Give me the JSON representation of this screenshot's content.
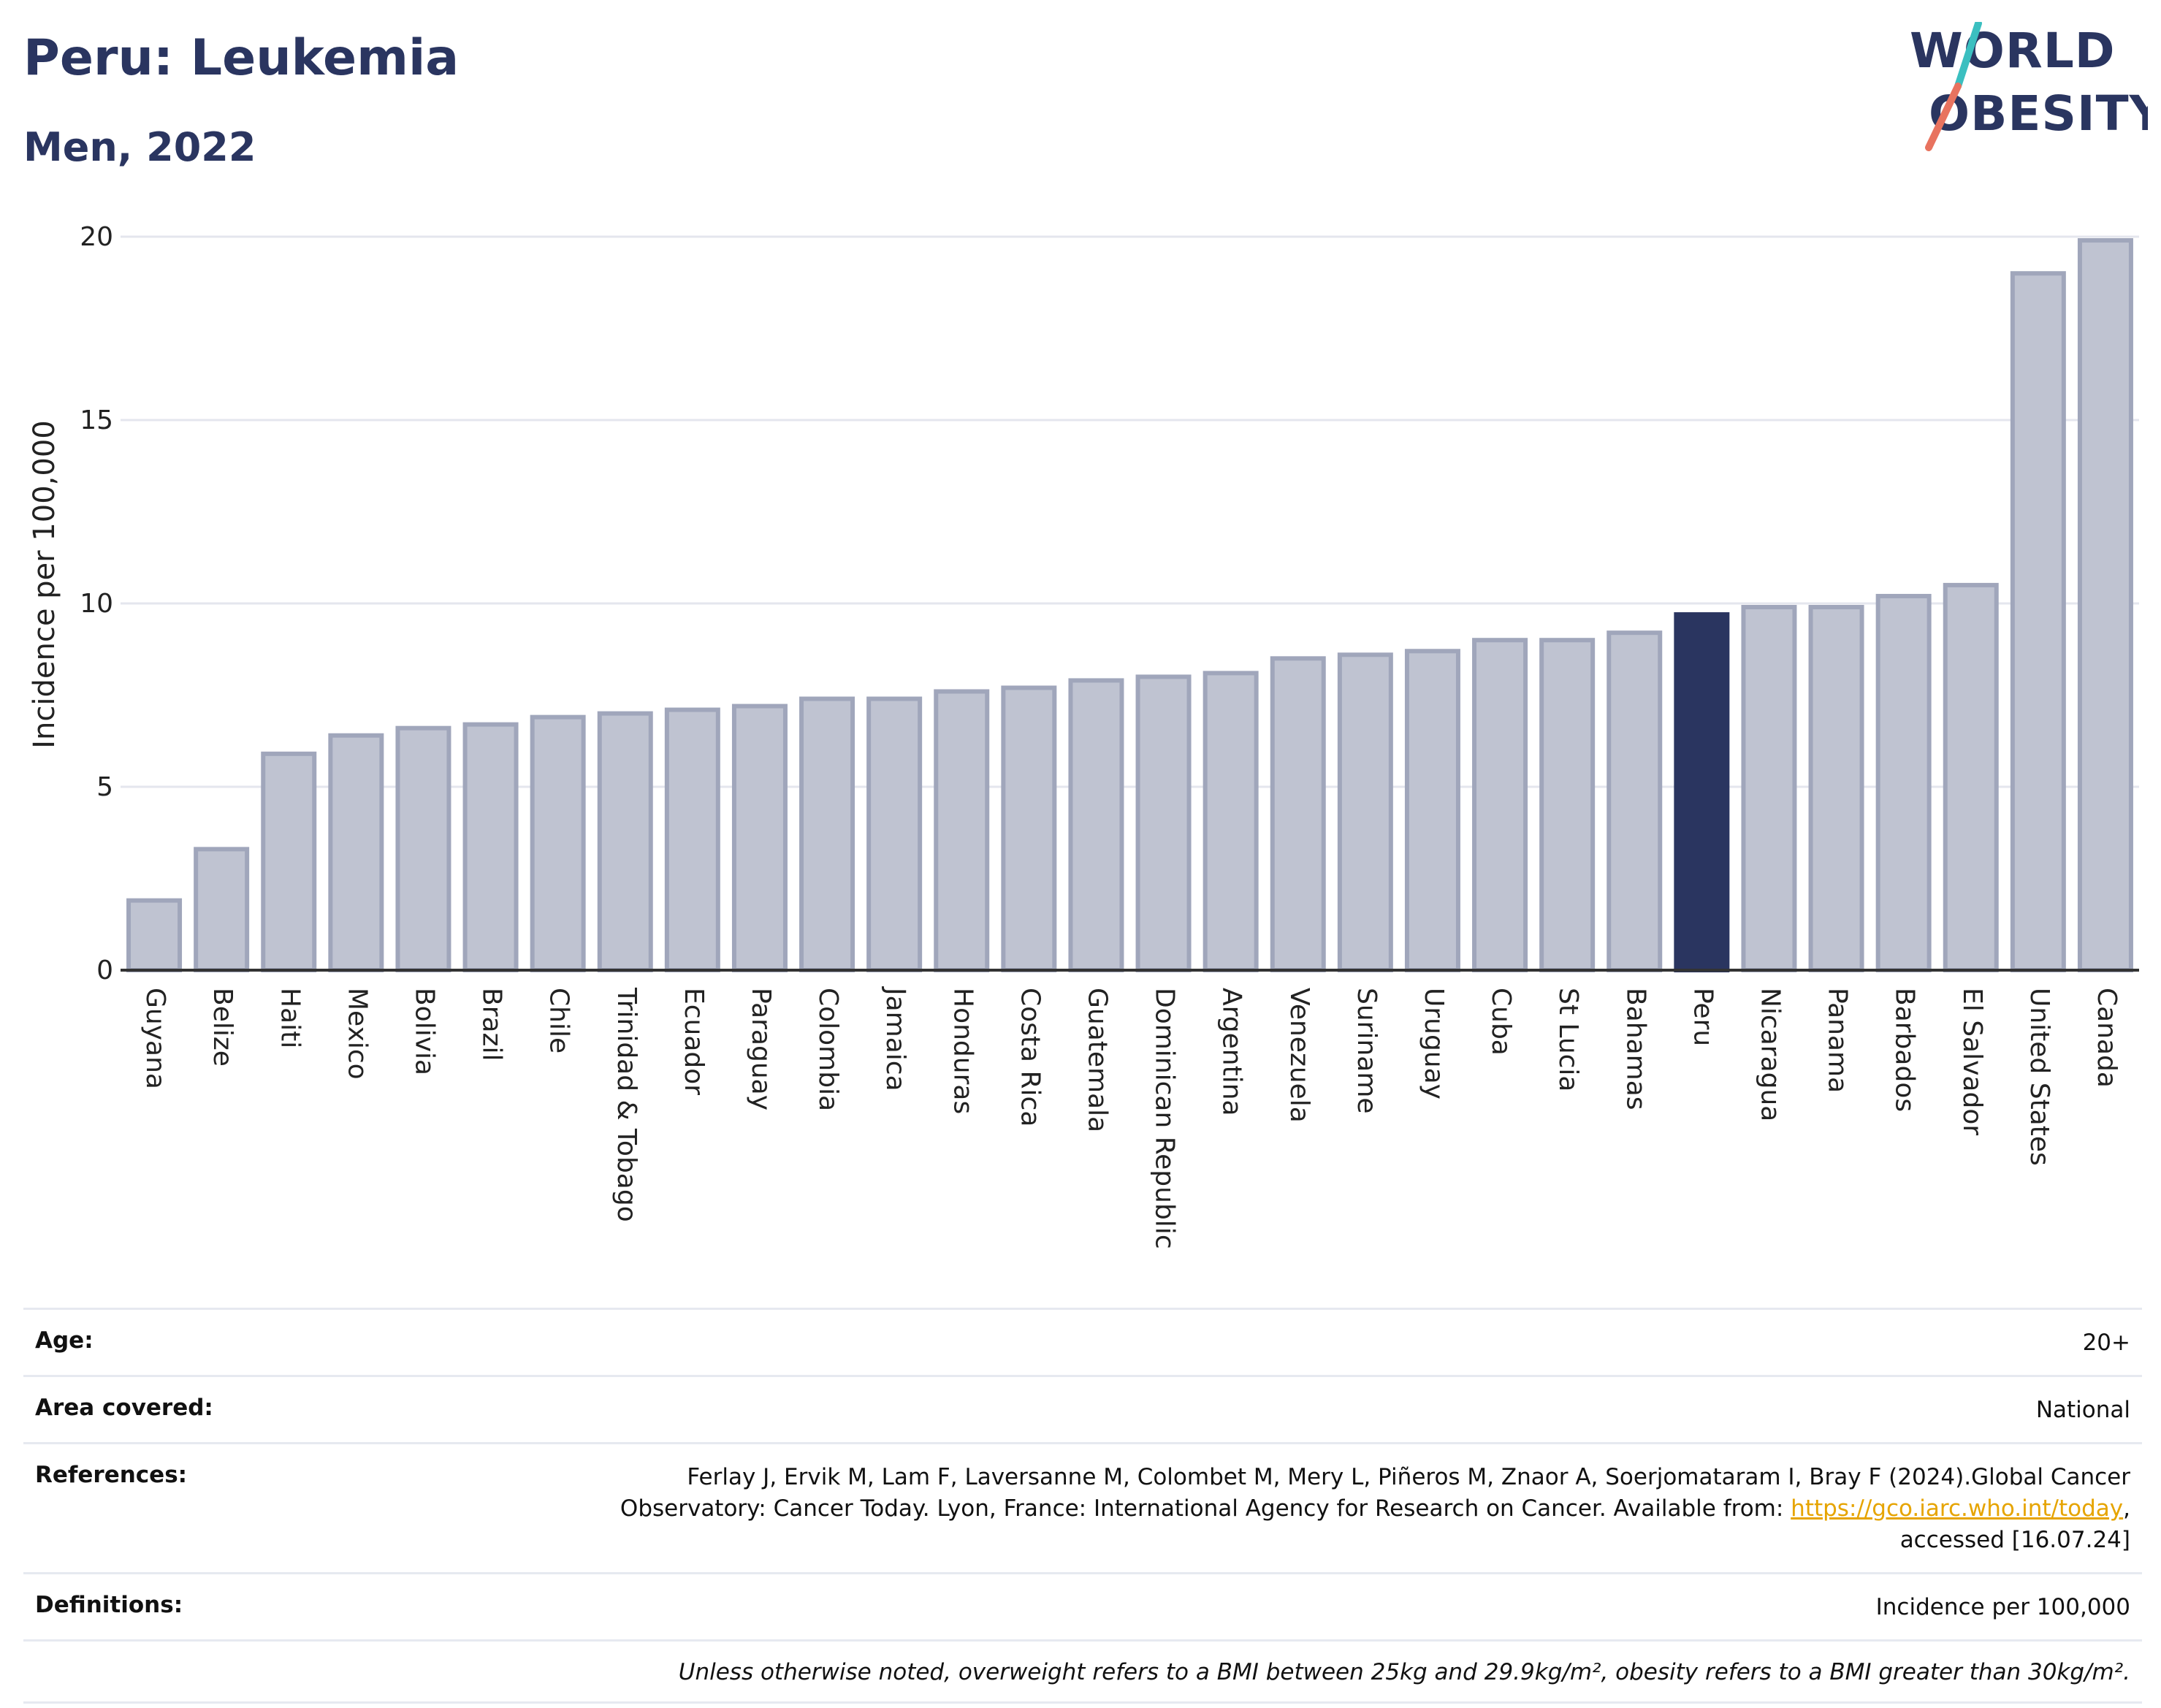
{
  "header": {
    "title": "Peru: Leukemia",
    "subtitle": "Men, 2022"
  },
  "logo": {
    "line1": "WORLD",
    "line2": "OBESITY",
    "colors": {
      "text": "#2a3560",
      "slash_top": "#3bbfc0",
      "slash_bottom": "#e8735f"
    }
  },
  "chart_data": {
    "type": "bar",
    "ylabel": "Incidence per 100,000",
    "ylim": [
      0,
      20
    ],
    "yticks": [
      0,
      5,
      10,
      15,
      20
    ],
    "highlight": "Peru",
    "colors": {
      "bar": "#bfc3d1",
      "bar_stroke": "#a0a6bb",
      "highlight": "#2a3560"
    },
    "grid": true,
    "categories": [
      "Guyana",
      "Belize",
      "Haiti",
      "Mexico",
      "Bolivia",
      "Brazil",
      "Chile",
      "Trinidad & Tobago",
      "Ecuador",
      "Paraguay",
      "Colombia",
      "Jamaica",
      "Honduras",
      "Costa Rica",
      "Guatemala",
      "Dominican Republic",
      "Argentina",
      "Venezuela",
      "Suriname",
      "Uruguay",
      "Cuba",
      "St Lucia",
      "Bahamas",
      "Peru",
      "Nicaragua",
      "Panama",
      "Barbados",
      "El Salvador",
      "United States",
      "Canada"
    ],
    "values": [
      1.9,
      3.3,
      5.9,
      6.4,
      6.6,
      6.7,
      6.9,
      7.0,
      7.1,
      7.2,
      7.4,
      7.4,
      7.6,
      7.7,
      7.9,
      8.0,
      8.1,
      8.5,
      8.6,
      8.7,
      9.0,
      9.0,
      9.2,
      9.7,
      9.9,
      9.9,
      10.2,
      10.5,
      19.0,
      19.9
    ]
  },
  "meta": {
    "age_label": "Age:",
    "age_value": "20+",
    "area_label": "Area covered:",
    "area_value": "National",
    "references_label": "References:",
    "references_line1": "Ferlay J, Ervik M, Lam F, Laversanne M, Colombet M, Mery L, Piñeros M, Znaor A, Soerjomataram I, Bray F (2024).Global Cancer",
    "references_line2_pre": "Observatory: Cancer Today. Lyon, France: International Agency for Research on Cancer. Available from: ",
    "references_link": "https://gco.iarc.who.int/today",
    "references_line2_post": ",",
    "references_line3": "accessed [16.07.24]",
    "definitions_label": "Definitions:",
    "definitions_value": "Incidence per 100,000",
    "note": "Unless otherwise noted, overweight refers to a BMI between 25kg and 29.9kg/m², obesity refers to a BMI greater than 30kg/m²."
  }
}
